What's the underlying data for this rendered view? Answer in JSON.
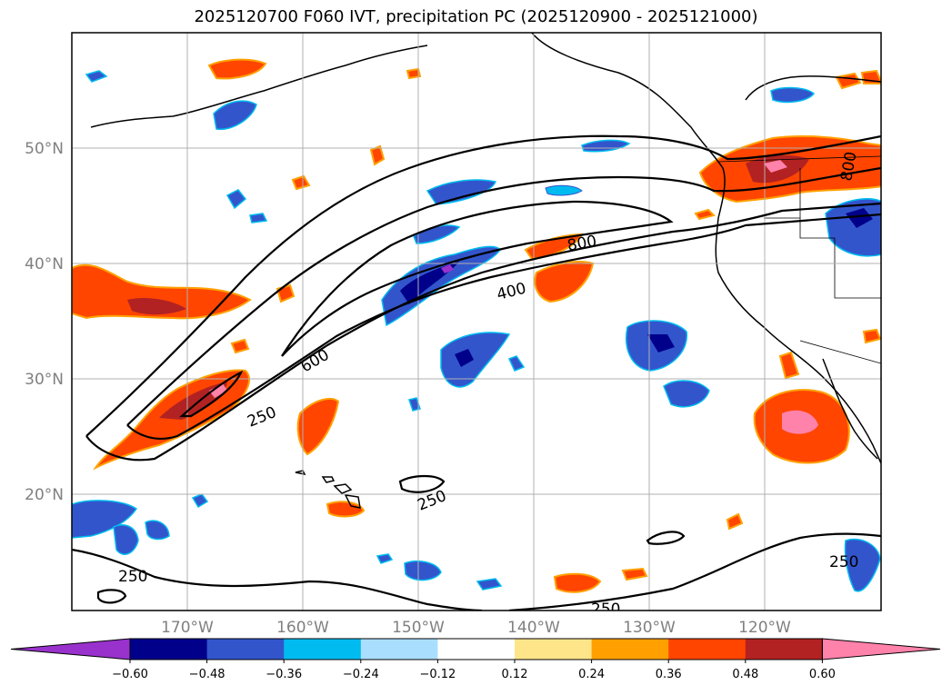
{
  "title": "2025120700 F060 IVT, precipitation PC (2025120900 - 2025121000)",
  "lat_labels": [
    "50°N",
    "40°N",
    "30°N",
    "20°N"
  ],
  "lon_labels": [
    "170°W",
    "160°W",
    "150°W",
    "140°W",
    "130°W",
    "120°W"
  ],
  "ivt_contour_labels": [
    "800",
    "400",
    "600",
    "250",
    "250",
    "250",
    "250",
    "250",
    "800"
  ],
  "colorbar": {
    "colors": [
      "#9932cc",
      "#00008b",
      "#3355cc",
      "#00bbf0",
      "#aadeff",
      "#ffffff",
      "#ffe58a",
      "#ffa000",
      "#ff4500",
      "#b22222",
      "#ff82ab"
    ],
    "tick_labels": [
      "−0.60",
      "−0.48",
      "−0.36",
      "−0.24",
      "−0.12",
      "0.12",
      "0.24",
      "0.36",
      "0.48",
      "0.60"
    ]
  }
}
